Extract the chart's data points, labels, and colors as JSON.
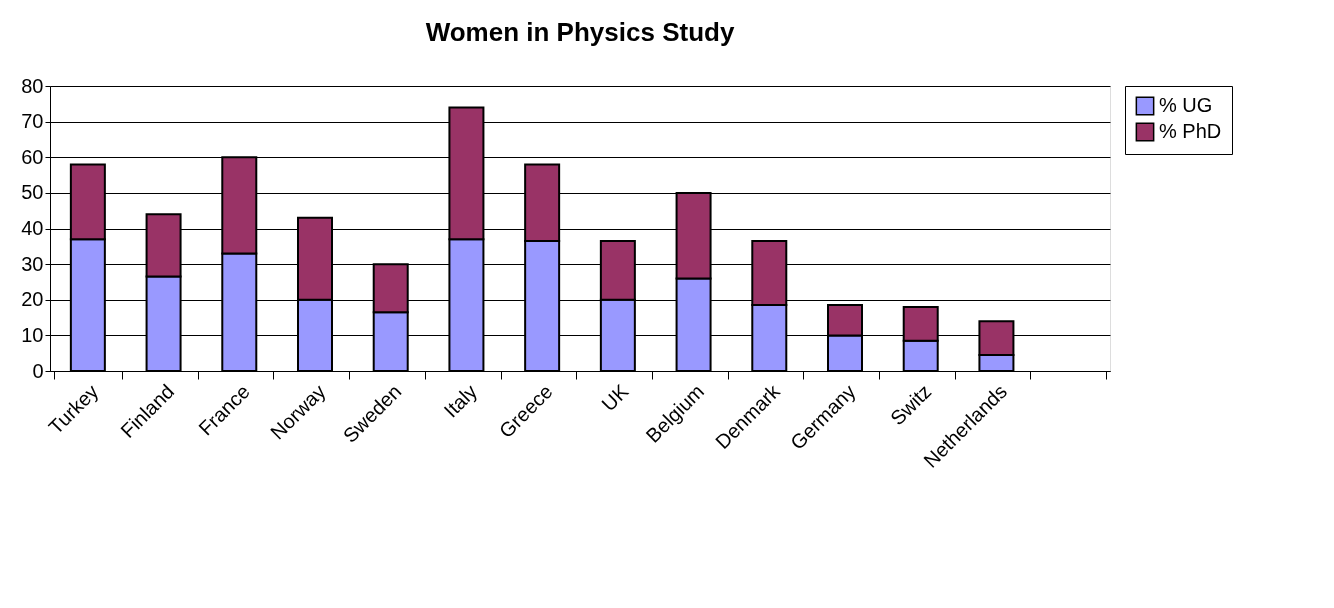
{
  "chart_data": {
    "type": "bar",
    "title": "Women in Physics Study",
    "stacked": true,
    "categories": [
      "Turkey",
      "Finland",
      "France",
      "Norway",
      "Sweden",
      "Italy",
      "Greece",
      "UK",
      "Belgium",
      "Denmark",
      "Germany",
      "Switz",
      "Netherlands",
      null
    ],
    "series": [
      {
        "name": "% UG",
        "color": "#9999ff",
        "values": [
          37,
          26.5,
          33,
          20,
          16.5,
          37,
          36.5,
          20,
          26,
          18.5,
          10,
          8.5,
          4.5,
          null
        ]
      },
      {
        "name": "% PhD",
        "color": "#993366",
        "values": [
          21,
          17.5,
          27,
          23,
          13.5,
          37,
          21.5,
          16.5,
          24,
          18,
          8.5,
          9.5,
          9.5,
          null
        ]
      }
    ],
    "ylim": [
      0,
      80
    ],
    "yticks": [
      0,
      10,
      20,
      30,
      40,
      50,
      60,
      70,
      80
    ],
    "grid": "y",
    "legend": "right"
  }
}
